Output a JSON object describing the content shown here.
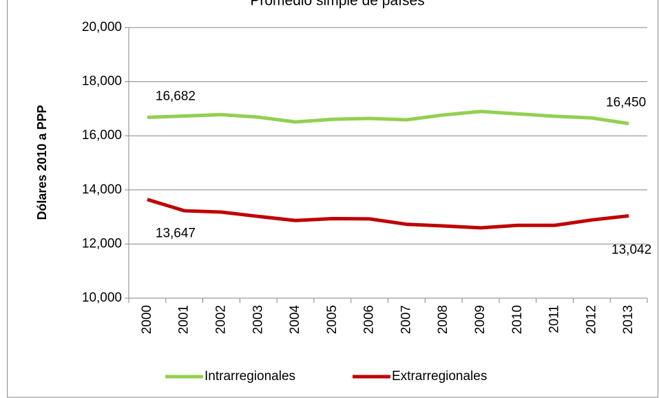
{
  "chart_data": {
    "type": "line",
    "title": "Promedio simple de países",
    "ylabel": "Dólares 2010 a PPP",
    "categories": [
      "2000",
      "2001",
      "2002",
      "2003",
      "2004",
      "2005",
      "2006",
      "2007",
      "2008",
      "2009",
      "2010",
      "2011",
      "2012",
      "2013"
    ],
    "series": [
      {
        "name": "Intrarregionales",
        "color": "#92d050",
        "values": [
          16682,
          16730,
          16780,
          16690,
          16510,
          16610,
          16640,
          16590,
          16770,
          16900,
          16810,
          16720,
          16660,
          16450
        ],
        "value_labels": [
          "16,682",
          null,
          null,
          null,
          null,
          null,
          null,
          null,
          null,
          null,
          null,
          null,
          null,
          "16,450"
        ]
      },
      {
        "name": "Extrarregionales",
        "color": "#c00000",
        "values": [
          13647,
          13230,
          13180,
          13020,
          12870,
          12940,
          12930,
          12730,
          12670,
          12600,
          12690,
          12690,
          12890,
          13042
        ],
        "value_labels": [
          "13,647",
          null,
          null,
          null,
          null,
          null,
          null,
          null,
          null,
          null,
          null,
          null,
          null,
          "13,042"
        ]
      }
    ],
    "ylim": [
      10000,
      20000
    ],
    "yticks": [
      {
        "value": 10000,
        "label": "10,000"
      },
      {
        "value": 12000,
        "label": "12,000"
      },
      {
        "value": 14000,
        "label": "14,000"
      },
      {
        "value": 16000,
        "label": "16,000"
      },
      {
        "value": 18000,
        "label": "18,000"
      },
      {
        "value": 20000,
        "label": "20,000"
      }
    ],
    "grid": true,
    "legend": "bottom"
  }
}
